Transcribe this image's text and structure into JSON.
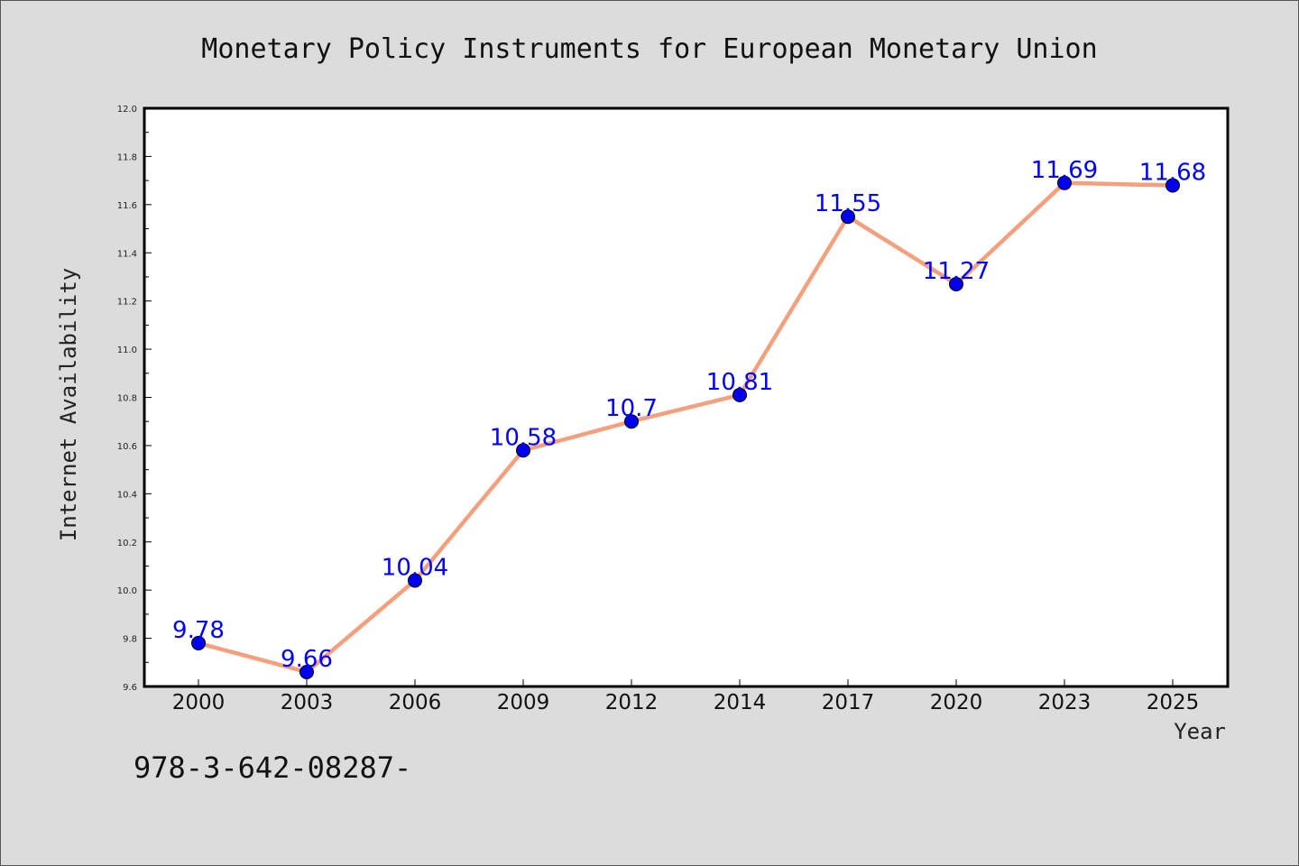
{
  "chart_data": {
    "type": "line",
    "title": "Monetary Policy Instruments for European Monetary Union",
    "xlabel": "Year",
    "ylabel": "Internet Availability",
    "categories": [
      "2000",
      "2003",
      "2006",
      "2009",
      "2012",
      "2014",
      "2017",
      "2020",
      "2023",
      "2025"
    ],
    "series": [
      {
        "values": [
          9.78,
          9.66,
          10.04,
          10.58,
          10.7,
          10.81,
          11.55,
          11.27,
          11.69,
          11.68
        ],
        "data_labels": [
          "9.78",
          "9.66",
          "10.04",
          "10.58",
          "10.7",
          "10.81",
          "11.55",
          "11.27",
          "11.69",
          "11.68"
        ],
        "line_color": "#f4a07e",
        "marker_color": "#0000ee"
      }
    ],
    "ylim": [
      9.6,
      12.0
    ],
    "yticks": [
      "9.6",
      "9.8",
      "10.0",
      "10.2",
      "10.4",
      "10.6",
      "10.8",
      "11.0",
      "11.2",
      "11.4",
      "11.6",
      "11.8",
      "12.0"
    ],
    "data_label_color": "#0000ff",
    "grid": false,
    "legend": "none"
  },
  "footer": {
    "code": "978-3-642-08287-"
  }
}
